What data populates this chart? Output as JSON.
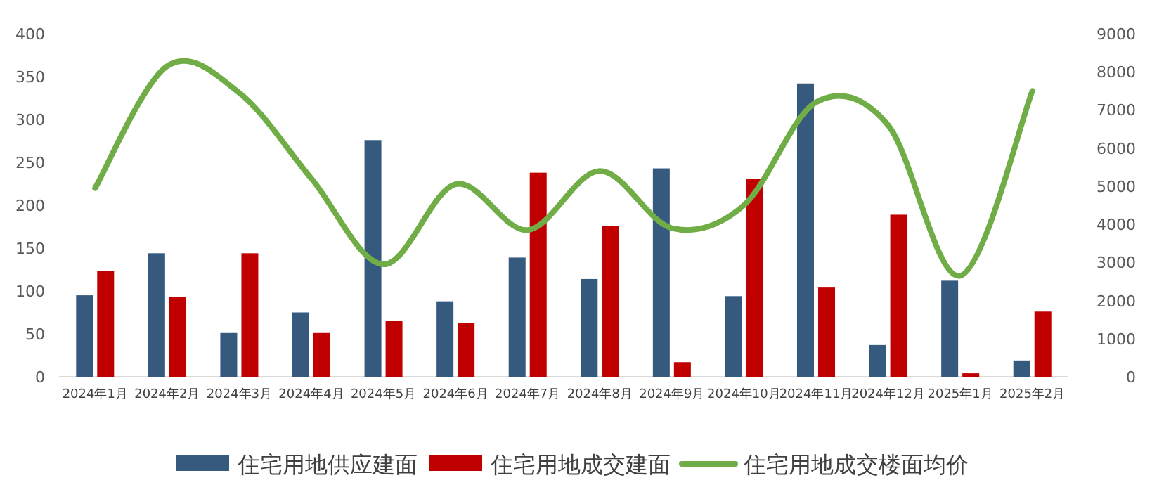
{
  "chart_data": {
    "type": "bar",
    "categories": [
      "2024年1月",
      "2024年2月",
      "2024年3月",
      "2024年4月",
      "2024年5月",
      "2024年6月",
      "2024年7月",
      "2024年8月",
      "2024年9月",
      "2024年10月",
      "2024年11月",
      "2024年12月",
      "2025年1月",
      "2025年2月"
    ],
    "series": [
      {
        "name": "住宅用地供应建面",
        "color": "#355a7e",
        "values": [
          95,
          144,
          51,
          75,
          276,
          88,
          139,
          114,
          243,
          94,
          342,
          37,
          112,
          19
        ]
      },
      {
        "name": "住宅用地成交建面",
        "color": "#c00000",
        "values": [
          123,
          93,
          144,
          51,
          65,
          63,
          238,
          176,
          17,
          231,
          104,
          189,
          4,
          76
        ]
      },
      {
        "name": "住宅用地成交楼面均价",
        "type": "line",
        "axis": "y2",
        "color": "#70ad47",
        "values": [
          4950,
          8150,
          7450,
          5200,
          2950,
          5050,
          3850,
          5400,
          3900,
          4500,
          7200,
          6600,
          2650,
          7500
        ]
      }
    ],
    "ylim": [
      0,
      400
    ],
    "yticks": [
      0,
      50,
      100,
      150,
      200,
      250,
      300,
      350,
      400
    ],
    "y2lim": [
      0,
      9000
    ],
    "y2ticks": [
      0,
      1000,
      2000,
      3000,
      4000,
      5000,
      6000,
      7000,
      8000,
      9000
    ],
    "legend": "bottom",
    "grid": false
  }
}
